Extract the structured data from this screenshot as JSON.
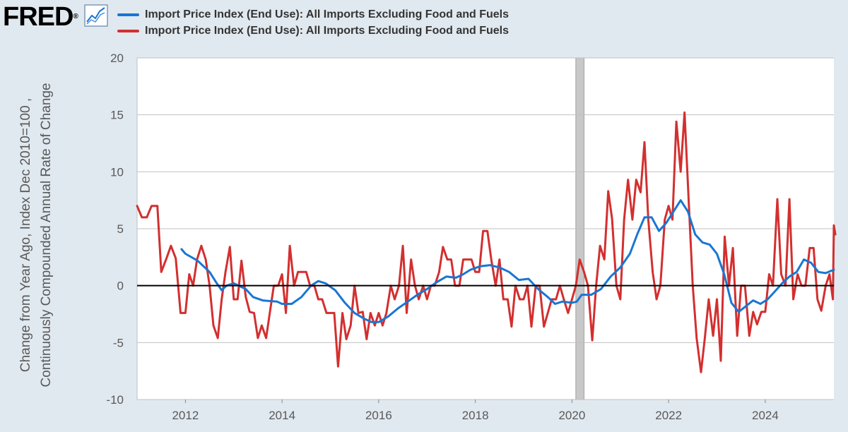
{
  "header": {
    "logo_text": "FRED",
    "logo_mark": "®",
    "logo_icon": "chart-line-icon"
  },
  "colors": {
    "series_1": "#1976d2",
    "series_2": "#d32f2f",
    "zero_line": "#000000",
    "recession": "#c8c8c8",
    "gridline": "#c0c0c0",
    "plot_bg": "#ffffff",
    "page_bg": "#e1e9f0"
  },
  "chart_data": {
    "type": "line",
    "title": "",
    "xlabel": "",
    "ylabel": "Change from Year Ago, Index Dec 2010=100 , Continuously Compounded Annual Rate of Change",
    "xlim": [
      2011.0,
      2025.42
    ],
    "ylim": [
      -10,
      20
    ],
    "x_ticks": [
      2012,
      2014,
      2016,
      2018,
      2020,
      2022,
      2024
    ],
    "y_ticks": [
      -10,
      -5,
      0,
      5,
      10,
      15,
      20
    ],
    "grid": "horizontal",
    "legend": "top",
    "recession_shading": [
      [
        2020.08,
        2020.25
      ]
    ],
    "series": [
      {
        "name": "Import Price Index (End Use): All Imports Excluding Food and Fuels",
        "color": "#1976d2",
        "transform": "Change from Year Ago",
        "points": [
          [
            2011.92,
            3.2
          ],
          [
            2012.0,
            2.8
          ],
          [
            2012.25,
            2.2
          ],
          [
            2012.5,
            1.2
          ],
          [
            2012.65,
            0.2
          ],
          [
            2012.75,
            -0.4
          ],
          [
            2012.85,
            0.0
          ],
          [
            2013.0,
            0.2
          ],
          [
            2013.25,
            -0.3
          ],
          [
            2013.4,
            -1.0
          ],
          [
            2013.6,
            -1.3
          ],
          [
            2013.9,
            -1.4
          ],
          [
            2014.0,
            -1.6
          ],
          [
            2014.2,
            -1.6
          ],
          [
            2014.4,
            -1.0
          ],
          [
            2014.6,
            0.0
          ],
          [
            2014.75,
            0.4
          ],
          [
            2014.9,
            0.2
          ],
          [
            2015.1,
            -0.4
          ],
          [
            2015.3,
            -1.5
          ],
          [
            2015.5,
            -2.4
          ],
          [
            2015.7,
            -2.9
          ],
          [
            2015.85,
            -3.2
          ],
          [
            2016.0,
            -3.2
          ],
          [
            2016.2,
            -2.7
          ],
          [
            2016.4,
            -2.0
          ],
          [
            2016.6,
            -1.4
          ],
          [
            2016.8,
            -0.8
          ],
          [
            2017.0,
            -0.3
          ],
          [
            2017.2,
            0.3
          ],
          [
            2017.4,
            0.8
          ],
          [
            2017.6,
            0.7
          ],
          [
            2017.75,
            1.0
          ],
          [
            2017.9,
            1.4
          ],
          [
            2018.1,
            1.7
          ],
          [
            2018.3,
            1.8
          ],
          [
            2018.5,
            1.6
          ],
          [
            2018.7,
            1.2
          ],
          [
            2018.9,
            0.5
          ],
          [
            2019.1,
            0.6
          ],
          [
            2019.3,
            -0.3
          ],
          [
            2019.5,
            -1.0
          ],
          [
            2019.65,
            -1.6
          ],
          [
            2019.8,
            -1.4
          ],
          [
            2020.0,
            -1.5
          ],
          [
            2020.1,
            -1.4
          ],
          [
            2020.2,
            -0.8
          ],
          [
            2020.4,
            -0.8
          ],
          [
            2020.6,
            -0.3
          ],
          [
            2020.8,
            0.8
          ],
          [
            2021.0,
            1.6
          ],
          [
            2021.2,
            2.8
          ],
          [
            2021.35,
            4.5
          ],
          [
            2021.5,
            6.0
          ],
          [
            2021.65,
            6.0
          ],
          [
            2021.8,
            4.8
          ],
          [
            2021.95,
            5.5
          ],
          [
            2022.1,
            6.5
          ],
          [
            2022.25,
            7.5
          ],
          [
            2022.4,
            6.5
          ],
          [
            2022.55,
            4.5
          ],
          [
            2022.7,
            3.8
          ],
          [
            2022.85,
            3.6
          ],
          [
            2023.0,
            2.8
          ],
          [
            2023.15,
            1.0
          ],
          [
            2023.3,
            -1.5
          ],
          [
            2023.45,
            -2.3
          ],
          [
            2023.6,
            -1.8
          ],
          [
            2023.75,
            -1.3
          ],
          [
            2023.9,
            -1.6
          ],
          [
            2024.05,
            -1.2
          ],
          [
            2024.2,
            -0.5
          ],
          [
            2024.35,
            0.2
          ],
          [
            2024.5,
            0.8
          ],
          [
            2024.65,
            1.2
          ],
          [
            2024.8,
            2.3
          ],
          [
            2024.95,
            2.0
          ],
          [
            2025.1,
            1.2
          ],
          [
            2025.25,
            1.1
          ],
          [
            2025.42,
            1.4
          ]
        ]
      },
      {
        "name": "Import Price Index (End Use): All Imports Excluding Food and Fuels",
        "color": "#d32f2f",
        "transform": "Continuously Compounded Annual Rate of Change",
        "points": [
          [
            2011.0,
            7.0
          ],
          [
            2011.1,
            6.0
          ],
          [
            2011.2,
            6.0
          ],
          [
            2011.3,
            7.0
          ],
          [
            2011.42,
            7.0
          ],
          [
            2011.5,
            1.2
          ],
          [
            2011.6,
            2.3
          ],
          [
            2011.7,
            3.5
          ],
          [
            2011.8,
            2.4
          ],
          [
            2011.9,
            -2.4
          ],
          [
            2012.0,
            -2.4
          ],
          [
            2012.08,
            1.0
          ],
          [
            2012.16,
            0.0
          ],
          [
            2012.24,
            2.3
          ],
          [
            2012.33,
            3.5
          ],
          [
            2012.42,
            2.3
          ],
          [
            2012.5,
            0.0
          ],
          [
            2012.58,
            -3.5
          ],
          [
            2012.67,
            -4.6
          ],
          [
            2012.75,
            -1.2
          ],
          [
            2012.83,
            1.2
          ],
          [
            2012.92,
            3.4
          ],
          [
            2013.0,
            -1.2
          ],
          [
            2013.08,
            -1.2
          ],
          [
            2013.16,
            2.2
          ],
          [
            2013.25,
            -1.0
          ],
          [
            2013.33,
            -2.3
          ],
          [
            2013.42,
            -2.4
          ],
          [
            2013.5,
            -4.6
          ],
          [
            2013.58,
            -3.5
          ],
          [
            2013.67,
            -4.6
          ],
          [
            2013.75,
            -2.3
          ],
          [
            2013.83,
            0.0
          ],
          [
            2013.92,
            0.0
          ],
          [
            2014.0,
            1.0
          ],
          [
            2014.08,
            -2.4
          ],
          [
            2014.16,
            3.5
          ],
          [
            2014.25,
            0.0
          ],
          [
            2014.33,
            1.2
          ],
          [
            2014.42,
            1.2
          ],
          [
            2014.5,
            1.2
          ],
          [
            2014.58,
            0.0
          ],
          [
            2014.67,
            0.0
          ],
          [
            2014.75,
            -1.2
          ],
          [
            2014.83,
            -1.2
          ],
          [
            2014.92,
            -2.4
          ],
          [
            2015.0,
            -2.4
          ],
          [
            2015.08,
            -2.4
          ],
          [
            2015.16,
            -7.1
          ],
          [
            2015.25,
            -2.4
          ],
          [
            2015.33,
            -4.7
          ],
          [
            2015.42,
            -3.5
          ],
          [
            2015.5,
            0.0
          ],
          [
            2015.58,
            -2.4
          ],
          [
            2015.67,
            -2.3
          ],
          [
            2015.75,
            -4.7
          ],
          [
            2015.83,
            -2.4
          ],
          [
            2015.92,
            -3.5
          ],
          [
            2016.0,
            -2.4
          ],
          [
            2016.08,
            -3.5
          ],
          [
            2016.16,
            -2.4
          ],
          [
            2016.25,
            0.0
          ],
          [
            2016.33,
            -1.2
          ],
          [
            2016.42,
            0.0
          ],
          [
            2016.5,
            3.5
          ],
          [
            2016.58,
            -2.4
          ],
          [
            2016.67,
            2.3
          ],
          [
            2016.75,
            0.0
          ],
          [
            2016.83,
            -1.2
          ],
          [
            2016.92,
            0.0
          ],
          [
            2017.0,
            -1.2
          ],
          [
            2017.08,
            0.0
          ],
          [
            2017.16,
            0.0
          ],
          [
            2017.25,
            1.2
          ],
          [
            2017.33,
            3.4
          ],
          [
            2017.42,
            2.3
          ],
          [
            2017.5,
            2.3
          ],
          [
            2017.58,
            0.0
          ],
          [
            2017.67,
            0.0
          ],
          [
            2017.75,
            2.3
          ],
          [
            2017.83,
            2.3
          ],
          [
            2017.92,
            2.3
          ],
          [
            2018.0,
            1.2
          ],
          [
            2018.08,
            1.2
          ],
          [
            2018.16,
            4.8
          ],
          [
            2018.25,
            4.8
          ],
          [
            2018.33,
            2.3
          ],
          [
            2018.42,
            0.0
          ],
          [
            2018.5,
            2.3
          ],
          [
            2018.58,
            -1.2
          ],
          [
            2018.67,
            -1.2
          ],
          [
            2018.75,
            -3.6
          ],
          [
            2018.83,
            0.0
          ],
          [
            2018.92,
            -1.2
          ],
          [
            2019.0,
            -1.2
          ],
          [
            2019.08,
            0.0
          ],
          [
            2019.16,
            -3.6
          ],
          [
            2019.25,
            0.0
          ],
          [
            2019.33,
            0.0
          ],
          [
            2019.42,
            -3.6
          ],
          [
            2019.5,
            -2.4
          ],
          [
            2019.58,
            -1.2
          ],
          [
            2019.67,
            -1.2
          ],
          [
            2019.75,
            0.0
          ],
          [
            2019.83,
            -1.2
          ],
          [
            2019.92,
            -2.4
          ],
          [
            2020.0,
            -1.2
          ],
          [
            2020.08,
            0.0
          ],
          [
            2020.16,
            2.3
          ],
          [
            2020.25,
            1.2
          ],
          [
            2020.33,
            0.0
          ],
          [
            2020.42,
            -4.8
          ],
          [
            2020.5,
            0.0
          ],
          [
            2020.58,
            3.5
          ],
          [
            2020.67,
            2.3
          ],
          [
            2020.75,
            8.3
          ],
          [
            2020.83,
            5.9
          ],
          [
            2020.92,
            0.0
          ],
          [
            2021.0,
            -1.2
          ],
          [
            2021.08,
            5.8
          ],
          [
            2021.16,
            9.3
          ],
          [
            2021.25,
            5.8
          ],
          [
            2021.33,
            9.3
          ],
          [
            2021.42,
            8.2
          ],
          [
            2021.5,
            12.6
          ],
          [
            2021.58,
            5.8
          ],
          [
            2021.67,
            1.2
          ],
          [
            2021.75,
            -1.2
          ],
          [
            2021.83,
            0.0
          ],
          [
            2021.92,
            5.8
          ],
          [
            2022.0,
            7.0
          ],
          [
            2022.08,
            5.8
          ],
          [
            2022.16,
            14.4
          ],
          [
            2022.25,
            10.0
          ],
          [
            2022.33,
            15.2
          ],
          [
            2022.42,
            7.0
          ],
          [
            2022.5,
            0.0
          ],
          [
            2022.58,
            -4.6
          ],
          [
            2022.67,
            -7.6
          ],
          [
            2022.75,
            -4.6
          ],
          [
            2022.83,
            -1.2
          ],
          [
            2022.92,
            -4.4
          ],
          [
            2023.0,
            -1.2
          ],
          [
            2023.08,
            -6.6
          ],
          [
            2023.16,
            4.3
          ],
          [
            2023.25,
            0.0
          ],
          [
            2023.33,
            3.3
          ],
          [
            2023.42,
            -4.4
          ],
          [
            2023.5,
            0.0
          ],
          [
            2023.58,
            0.0
          ],
          [
            2023.67,
            -4.4
          ],
          [
            2023.75,
            -2.3
          ],
          [
            2023.83,
            -3.4
          ],
          [
            2023.92,
            -2.3
          ],
          [
            2024.0,
            -2.3
          ],
          [
            2024.08,
            1.0
          ],
          [
            2024.16,
            0.0
          ],
          [
            2024.25,
            7.6
          ],
          [
            2024.33,
            1.0
          ],
          [
            2024.42,
            0.0
          ],
          [
            2024.5,
            7.6
          ],
          [
            2024.58,
            -1.2
          ],
          [
            2024.67,
            1.0
          ],
          [
            2024.75,
            0.0
          ],
          [
            2024.83,
            0.0
          ],
          [
            2024.92,
            3.3
          ],
          [
            2025.0,
            3.3
          ],
          [
            2025.08,
            -1.2
          ],
          [
            2025.16,
            -2.2
          ],
          [
            2025.25,
            0.0
          ],
          [
            2025.33,
            1.0
          ],
          [
            2025.4,
            -1.2
          ],
          [
            2025.42,
            5.3
          ],
          [
            2025.45,
            4.5
          ]
        ]
      }
    ]
  }
}
